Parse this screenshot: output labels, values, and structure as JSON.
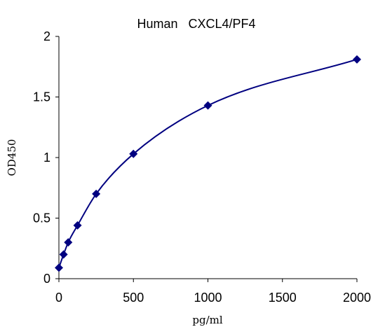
{
  "chart_data": {
    "type": "scatter",
    "title": "Human   CXCL4/PF4",
    "xlabel": "pg/ml",
    "ylabel": "OD450",
    "xlim": [
      0,
      2000
    ],
    "ylim": [
      0,
      2
    ],
    "x_ticks": [
      0,
      500,
      1000,
      1500,
      2000
    ],
    "y_ticks": [
      0,
      0.5,
      1,
      1.5,
      2
    ],
    "x_tick_labels": [
      "0",
      "500",
      "1000",
      "1500",
      "2000"
    ],
    "y_tick_labels": [
      "0",
      "0.5",
      "1",
      "1.5",
      "2"
    ],
    "grid": false,
    "legend": "none",
    "marker": "diamond",
    "smooth_line": true,
    "color": "#000080",
    "series": [
      {
        "x": [
          0,
          31.25,
          62.5,
          125,
          250,
          500,
          1000,
          2000
        ],
        "y": [
          0.09,
          0.2,
          0.3,
          0.44,
          0.7,
          1.03,
          1.43,
          1.81
        ]
      }
    ]
  }
}
